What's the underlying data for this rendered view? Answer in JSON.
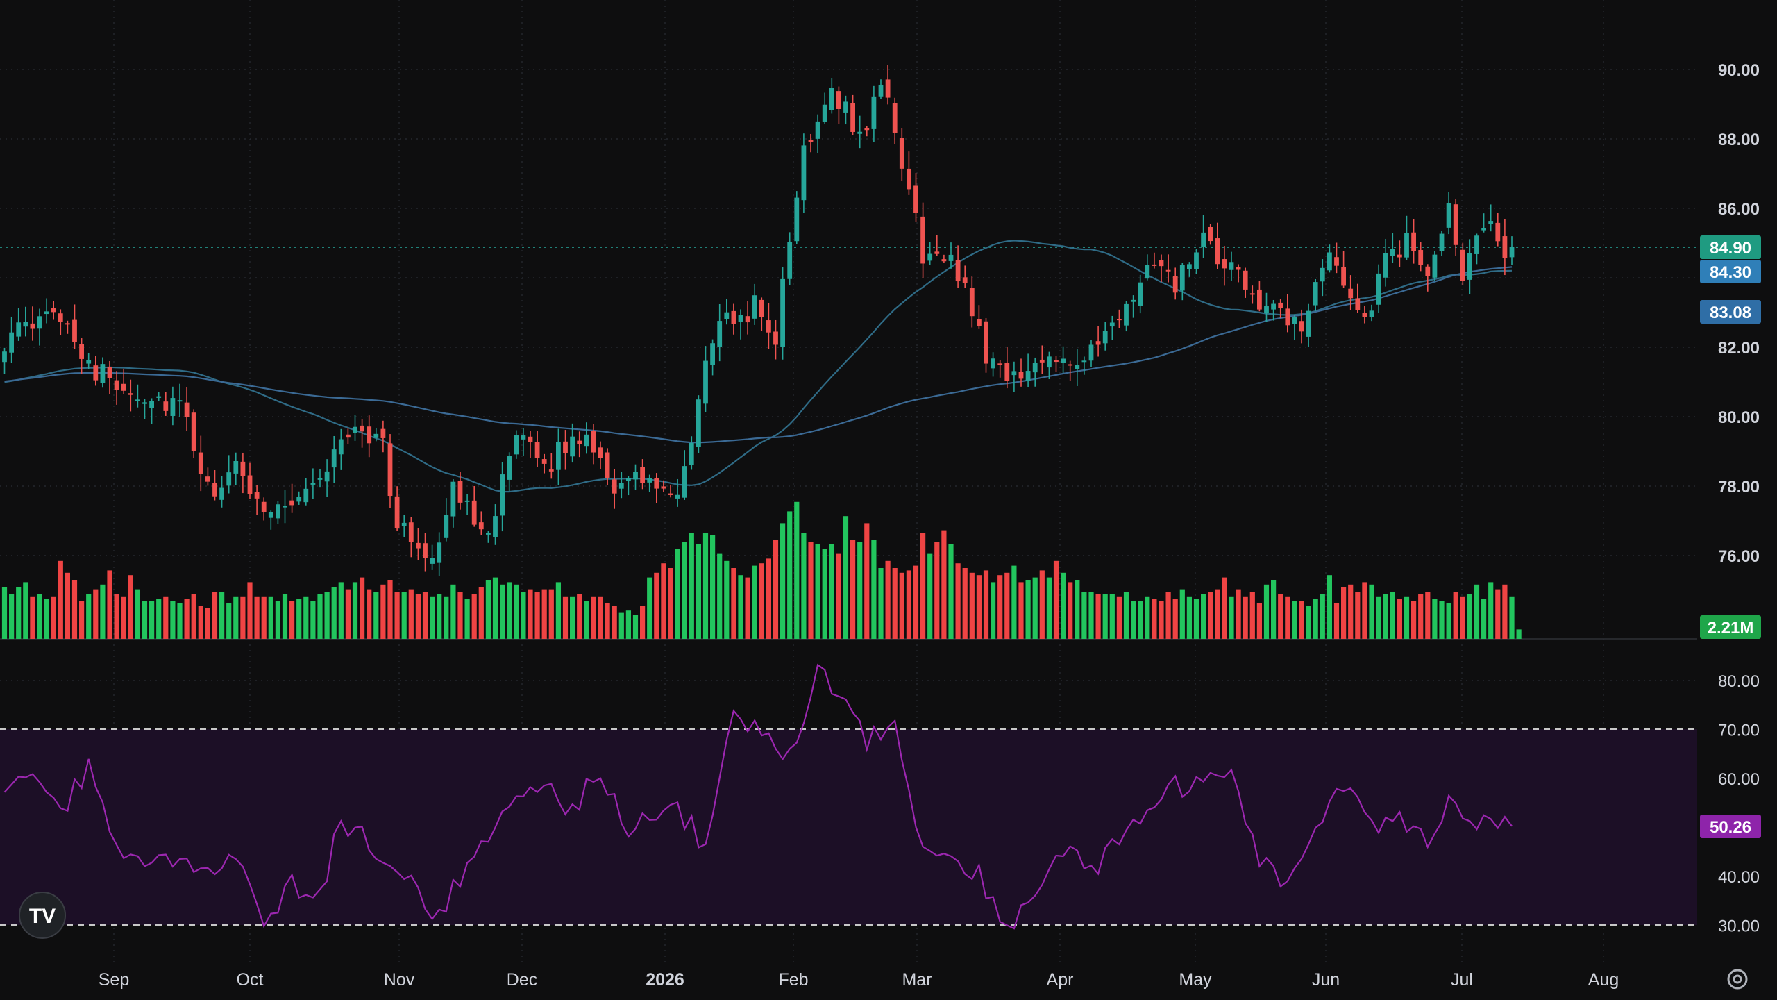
{
  "chart_data": {
    "type": "candlestick",
    "title": "",
    "colors": {
      "up": "#26a69a",
      "down": "#ef5350",
      "volume_up": "#22c55e",
      "volume_down": "#ef4444",
      "ma_fast": "#2f6b86",
      "ma_slow": "#3b6a95",
      "rsi_line": "#9c27b0",
      "rsi_band": "#1c0f26",
      "background": "#0e0e0f",
      "grid": "#2a2d34",
      "text": "#d1d4dc"
    },
    "price_axis": {
      "range": [
        75.0,
        91.0
      ],
      "ticks": [
        "90.00",
        "88.00",
        "86.00",
        "84.00",
        "82.00",
        "80.00",
        "78.00",
        "76.00"
      ]
    },
    "rsi_axis": {
      "range": [
        28,
        84
      ],
      "ticks": [
        "80.00",
        "70.00",
        "60.00",
        "50.00",
        "40.00",
        "30.00"
      ],
      "overbought": 70,
      "oversold": 30
    },
    "x_axis": {
      "labels": [
        "Sep",
        "Oct",
        "Nov",
        "Dec",
        "2026",
        "Feb",
        "Mar",
        "Apr",
        "May",
        "Jun",
        "Jul",
        "Aug"
      ],
      "bold_label": "2026"
    },
    "badges": {
      "last_price": "84.90",
      "ma_fast_value": "84.30",
      "ma_slow_value": "83.08",
      "volume_value": "2.21M",
      "rsi_value": "50.26"
    },
    "anchors": [
      [
        0,
        82.2
      ],
      [
        8,
        83.0
      ],
      [
        13,
        81.3
      ],
      [
        20,
        80.6
      ],
      [
        25,
        80.3
      ],
      [
        29,
        77.8
      ],
      [
        33,
        78.4
      ],
      [
        38,
        77.3
      ],
      [
        44,
        78.0
      ],
      [
        50,
        79.8
      ],
      [
        54,
        79.2
      ],
      [
        56,
        76.8
      ],
      [
        61,
        76.0
      ],
      [
        64,
        77.8
      ],
      [
        69,
        76.8
      ],
      [
        73,
        79.3
      ],
      [
        77,
        78.6
      ],
      [
        83,
        79.6
      ],
      [
        87,
        78.0
      ],
      [
        92,
        78.2
      ],
      [
        96,
        77.4
      ],
      [
        101,
        82.4
      ],
      [
        107,
        83.2
      ],
      [
        110,
        82.3
      ],
      [
        114,
        87.7
      ],
      [
        118,
        89.6
      ],
      [
        122,
        88.0
      ],
      [
        125,
        89.6
      ],
      [
        128,
        87.4
      ],
      [
        131,
        84.7
      ],
      [
        135,
        84.4
      ],
      [
        137,
        83.8
      ],
      [
        140,
        81.8
      ],
      [
        145,
        81.0
      ],
      [
        149,
        82.0
      ],
      [
        152,
        81.6
      ],
      [
        155,
        81.8
      ],
      [
        159,
        82.7
      ],
      [
        163,
        84.3
      ],
      [
        167,
        83.8
      ],
      [
        171,
        85.0
      ],
      [
        174,
        84.3
      ],
      [
        177,
        83.8
      ],
      [
        181,
        83.0
      ],
      [
        185,
        82.4
      ],
      [
        188,
        84.6
      ],
      [
        191,
        84.0
      ],
      [
        194,
        82.8
      ],
      [
        197,
        84.4
      ],
      [
        200,
        85.0
      ],
      [
        203,
        84.3
      ],
      [
        206,
        85.8
      ],
      [
        208,
        84.2
      ],
      [
        211,
        85.6
      ],
      [
        214,
        84.9
      ]
    ],
    "volume_levels": [
      2.2,
      1.9,
      2.2,
      2.4,
      1.8,
      1.9,
      1.7,
      1.8,
      3.3,
      2.8,
      2.5,
      1.6,
      1.9,
      2.1,
      2.3,
      2.9,
      1.9,
      1.8,
      2.7,
      2.1,
      1.6,
      1.6,
      1.7,
      1.8,
      1.6,
      1.5,
      1.7,
      1.9,
      1.4,
      1.3,
      2.0,
      2.0,
      1.5,
      1.8,
      1.8,
      2.4,
      1.8,
      1.8,
      1.8,
      1.6,
      1.9,
      1.6,
      1.7,
      1.8,
      1.6,
      1.9,
      2.0,
      2.2,
      2.4,
      2.1,
      2.4,
      2.6,
      2.1,
      2.0,
      2.3,
      2.5,
      2.0,
      2.0,
      2.1,
      1.9,
      2.0,
      1.8,
      1.9,
      1.8,
      2.3,
      2.0,
      1.7,
      1.9,
      2.2,
      2.5,
      2.6,
      2.3,
      2.4,
      2.3,
      2.0,
      2.1,
      2.0,
      2.1,
      2.1,
      2.4,
      1.8,
      1.8,
      1.9,
      1.6,
      1.8,
      1.8,
      1.5,
      1.4,
      1.1,
      1.2,
      1.0,
      1.4,
      2.6,
      2.8,
      3.2,
      3.0,
      3.8,
      4.1,
      4.5,
      4.0,
      4.5,
      4.4,
      3.6,
      3.3,
      3.0,
      2.7,
      2.6,
      3.1,
      3.2,
      3.4,
      4.2,
      4.9,
      5.4,
      5.8,
      4.5,
      4.1,
      4.0,
      3.8,
      4.0,
      3.6,
      5.2,
      4.2,
      4.1,
      4.9,
      4.2,
      3.0,
      3.3,
      3.0,
      2.8,
      2.9,
      3.1,
      4.5,
      3.6,
      4.1,
      4.6,
      4.0,
      3.2,
      3.0,
      2.8,
      2.7,
      2.9,
      2.4,
      2.7,
      2.8,
      3.1,
      2.4,
      2.5,
      2.6,
      2.9,
      2.6,
      3.3,
      2.8,
      2.4,
      2.5,
      2.0,
      2.0,
      1.9,
      1.9,
      1.9,
      1.8,
      2.0,
      1.6,
      1.6,
      1.8,
      1.7,
      1.6,
      2.0,
      1.7,
      2.1,
      1.8,
      1.7,
      1.9,
      2.0,
      2.1,
      2.6,
      1.8,
      2.1,
      1.8,
      2.0,
      1.5,
      2.3,
      2.5,
      1.9,
      1.8,
      1.6,
      1.6,
      1.4,
      1.7,
      1.9,
      2.7,
      1.5,
      2.2,
      2.3,
      2.0,
      2.4,
      2.3,
      1.8,
      1.9,
      2.0,
      1.7,
      1.8,
      1.6,
      1.9,
      2.0,
      1.7,
      1.6,
      1.5,
      2.0,
      1.8,
      1.9,
      2.3,
      1.7,
      2.4,
      2.1,
      2.3,
      1.8,
      0.4
    ],
    "rsi_anchors": [
      [
        0,
        58
      ],
      [
        4,
        62
      ],
      [
        8,
        53
      ],
      [
        12,
        62
      ],
      [
        16,
        44
      ],
      [
        20,
        42
      ],
      [
        24,
        44
      ],
      [
        29,
        41
      ],
      [
        33,
        44
      ],
      [
        37,
        32
      ],
      [
        41,
        38
      ],
      [
        45,
        36
      ],
      [
        48,
        52
      ],
      [
        51,
        48
      ],
      [
        55,
        42
      ],
      [
        58,
        40
      ],
      [
        61,
        30
      ],
      [
        65,
        40
      ],
      [
        69,
        48
      ],
      [
        73,
        55
      ],
      [
        77,
        58
      ],
      [
        81,
        54
      ],
      [
        85,
        62
      ],
      [
        89,
        50
      ],
      [
        93,
        52
      ],
      [
        96,
        54
      ],
      [
        100,
        46
      ],
      [
        104,
        72
      ],
      [
        108,
        70
      ],
      [
        112,
        65
      ],
      [
        116,
        82
      ],
      [
        120,
        76
      ],
      [
        123,
        68
      ],
      [
        127,
        70
      ],
      [
        131,
        46
      ],
      [
        135,
        42
      ],
      [
        139,
        40
      ],
      [
        143,
        30
      ],
      [
        147,
        36
      ],
      [
        151,
        46
      ],
      [
        155,
        40
      ],
      [
        159,
        48
      ],
      [
        163,
        54
      ],
      [
        167,
        58
      ],
      [
        171,
        58
      ],
      [
        175,
        62
      ],
      [
        179,
        44
      ],
      [
        183,
        38
      ],
      [
        187,
        50
      ],
      [
        191,
        58
      ],
      [
        195,
        50
      ],
      [
        199,
        52
      ],
      [
        203,
        48
      ],
      [
        206,
        56
      ],
      [
        208,
        52
      ],
      [
        211,
        52
      ],
      [
        214,
        50
      ]
    ]
  }
}
